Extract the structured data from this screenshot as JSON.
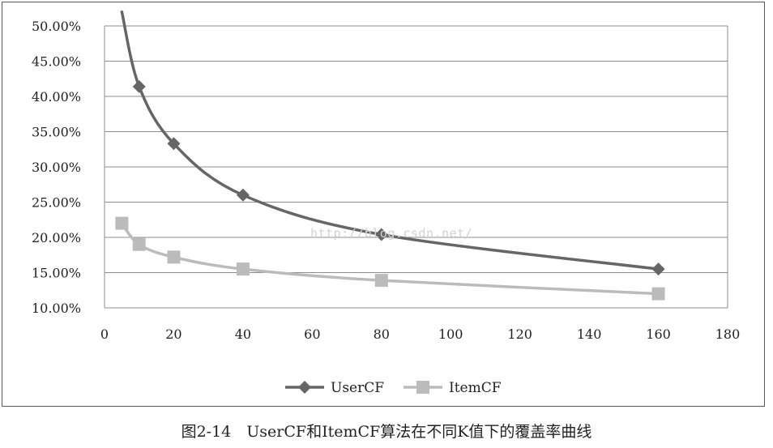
{
  "chart_data": {
    "type": "line",
    "title": "",
    "xlabel": "",
    "ylabel": "",
    "xlim": [
      0,
      180
    ],
    "ylim": [
      0.1,
      0.5
    ],
    "x_ticks": [
      "0",
      "20",
      "40",
      "60",
      "80",
      "100",
      "120",
      "140",
      "160",
      "180"
    ],
    "y_ticks": [
      "10.00%",
      "15.00%",
      "20.00%",
      "25.00%",
      "30.00%",
      "35.00%",
      "40.00%",
      "45.00%",
      "50.00%"
    ],
    "grid": "horizontal",
    "legend": "bottom",
    "series": [
      {
        "name": "UserCF",
        "marker": "diamond",
        "color": "#666666",
        "x": [
          5,
          10,
          20,
          40,
          80,
          160
        ],
        "y": [
          0.52,
          0.414,
          0.333,
          0.26,
          0.204,
          0.155
        ]
      },
      {
        "name": "ItemCF",
        "marker": "square",
        "color": "#bbbbbb",
        "x": [
          5,
          10,
          20,
          40,
          80,
          160
        ],
        "y": [
          0.22,
          0.19,
          0.172,
          0.155,
          0.139,
          0.12
        ]
      }
    ]
  },
  "caption": "图2-14　UserCF和ItemCF算法在不同K值下的覆盖率曲线",
  "watermark": "http://blog.csdn.net/"
}
